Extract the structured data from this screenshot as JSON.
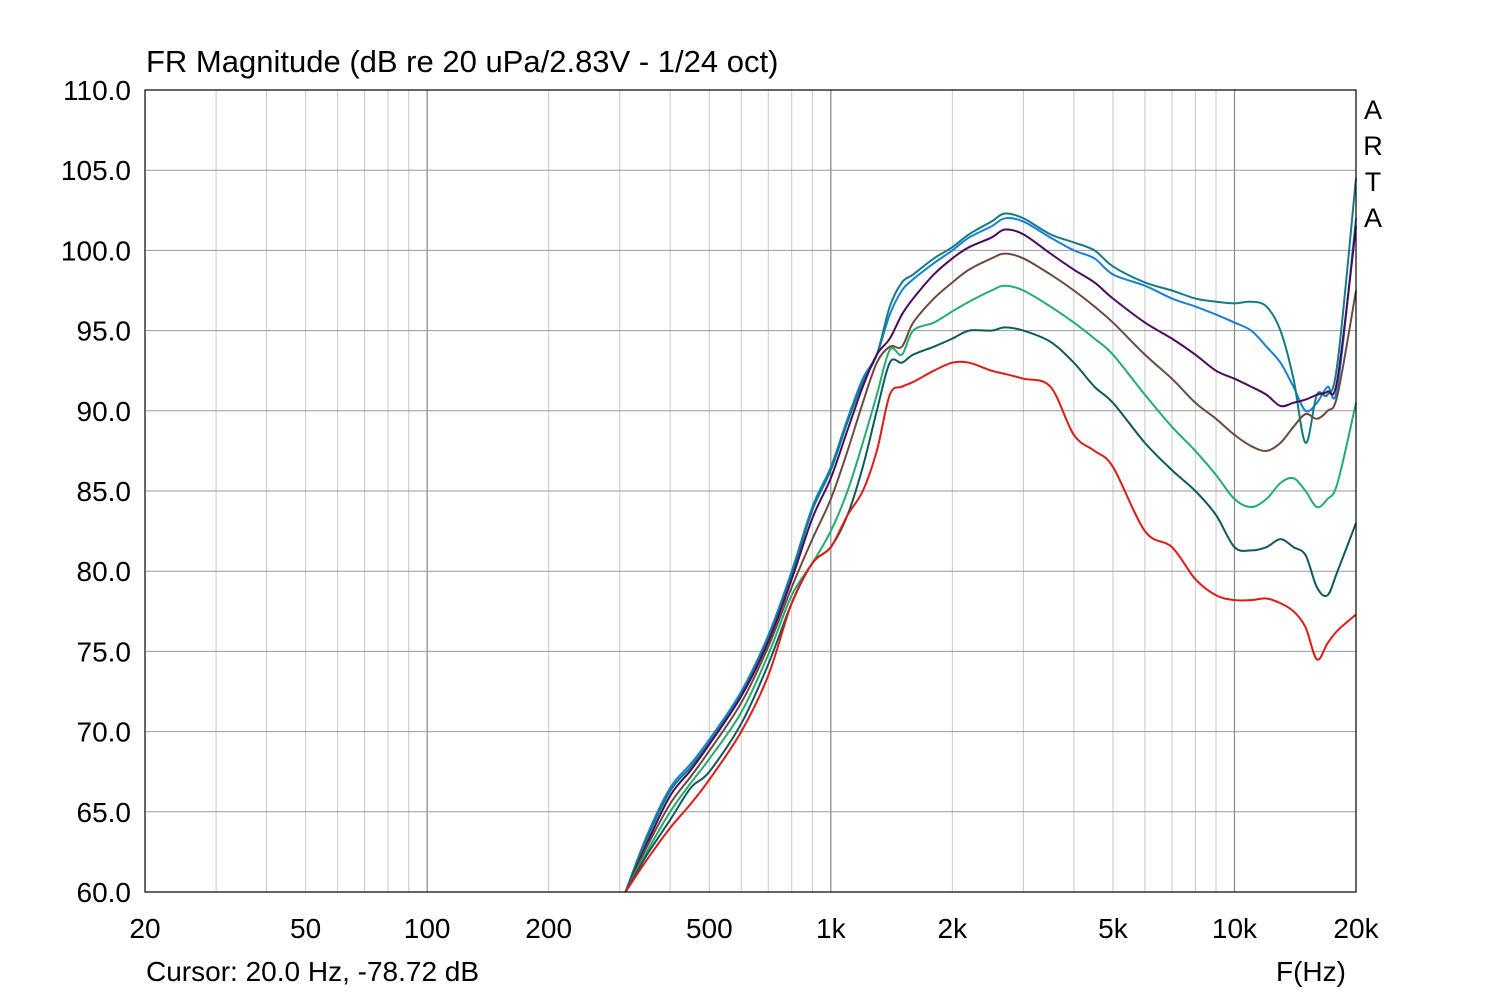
{
  "title": "FR Magnitude (dB re 20 uPa/2.83V - 1/24 oct)",
  "cursor_readout": "Cursor: 20.0 Hz, -78.72 dB",
  "x_unit_label": "F(Hz)",
  "brand_mark": "A\nR\nT\nA",
  "chart_data": {
    "type": "line",
    "title": "FR Magnitude (dB re 20 uPa/2.83V - 1/24 oct)",
    "xlabel": "F(Hz)",
    "ylabel": "",
    "x_scale": "log",
    "xlim": [
      20,
      20000
    ],
    "ylim": [
      60,
      110
    ],
    "grid": true,
    "x_ticks": [
      {
        "value": 20,
        "label": "20"
      },
      {
        "value": 50,
        "label": "50"
      },
      {
        "value": 100,
        "label": "100"
      },
      {
        "value": 200,
        "label": "200"
      },
      {
        "value": 500,
        "label": "500"
      },
      {
        "value": 1000,
        "label": "1k"
      },
      {
        "value": 2000,
        "label": "2k"
      },
      {
        "value": 5000,
        "label": "5k"
      },
      {
        "value": 10000,
        "label": "10k"
      },
      {
        "value": 20000,
        "label": "20k"
      }
    ],
    "y_ticks": [
      {
        "value": 60,
        "label": "60.0"
      },
      {
        "value": 65,
        "label": "65.0"
      },
      {
        "value": 70,
        "label": "70.0"
      },
      {
        "value": 75,
        "label": "75.0"
      },
      {
        "value": 80,
        "label": "80.0"
      },
      {
        "value": 85,
        "label": "85.0"
      },
      {
        "value": 90,
        "label": "90.0"
      },
      {
        "value": 95,
        "label": "95.0"
      },
      {
        "value": 100,
        "label": "100.0"
      },
      {
        "value": 105,
        "label": "105.0"
      },
      {
        "value": 110,
        "label": "110.0"
      }
    ],
    "x": [
      310,
      350,
      400,
      450,
      500,
      600,
      700,
      800,
      900,
      1000,
      1100,
      1200,
      1300,
      1400,
      1500,
      1600,
      1800,
      2000,
      2200,
      2500,
      2700,
      3000,
      3500,
      4000,
      4500,
      5000,
      6000,
      7000,
      8000,
      9000,
      10000,
      11000,
      12000,
      13000,
      14000,
      15000,
      16000,
      17000,
      18000,
      20000
    ],
    "series": [
      {
        "color": "#1a7fd6",
        "values": [
          60.0,
          63.5,
          66.5,
          68.0,
          69.5,
          72.5,
          76.0,
          80.0,
          84.0,
          86.5,
          89.5,
          92.0,
          93.5,
          96.0,
          97.5,
          98.2,
          99.2,
          100.0,
          100.8,
          101.5,
          102.0,
          101.8,
          100.8,
          100.0,
          99.5,
          98.5,
          97.8,
          97.0,
          96.5,
          96.0,
          95.5,
          95.0,
          94.0,
          93.0,
          91.5,
          90.0,
          90.5,
          91.5,
          91.5,
          102.0
        ]
      },
      {
        "color": "#127d82",
        "values": [
          60.0,
          63.3,
          66.3,
          67.8,
          69.3,
          72.3,
          75.8,
          79.8,
          83.8,
          86.3,
          89.3,
          91.8,
          93.5,
          96.5,
          98.0,
          98.5,
          99.5,
          100.2,
          101.0,
          101.8,
          102.3,
          102.0,
          101.0,
          100.5,
          100.0,
          99.0,
          98.0,
          97.5,
          97.0,
          96.8,
          96.7,
          96.8,
          96.5,
          95.0,
          92.0,
          88.0,
          91.0,
          91.0,
          93.0,
          104.5
        ]
      },
      {
        "color": "#4b0a5e",
        "values": [
          60.0,
          63.0,
          66.0,
          67.6,
          69.2,
          72.2,
          75.6,
          79.5,
          83.3,
          85.8,
          88.8,
          91.5,
          93.5,
          94.5,
          96.0,
          97.0,
          98.5,
          99.5,
          100.2,
          100.8,
          101.3,
          101.0,
          99.8,
          98.8,
          98.0,
          97.0,
          95.5,
          94.5,
          93.5,
          92.5,
          92.0,
          91.5,
          91.0,
          90.3,
          90.5,
          90.7,
          91.0,
          91.2,
          92.0,
          101.5
        ]
      },
      {
        "color": "#6e4a3c",
        "values": [
          60.0,
          62.8,
          65.5,
          67.2,
          68.8,
          71.8,
          75.3,
          79.0,
          82.0,
          84.5,
          87.5,
          90.5,
          93.0,
          94.0,
          94.0,
          95.5,
          97.0,
          98.0,
          98.8,
          99.5,
          99.8,
          99.5,
          98.5,
          97.5,
          96.5,
          95.5,
          93.5,
          92.0,
          90.5,
          89.5,
          88.5,
          87.8,
          87.5,
          88.0,
          89.0,
          89.8,
          89.5,
          90.0,
          91.0,
          97.5
        ]
      },
      {
        "color": "#22ad6e",
        "values": [
          60.0,
          62.5,
          65.0,
          66.8,
          68.3,
          71.2,
          74.8,
          78.5,
          80.5,
          82.5,
          85.0,
          88.0,
          91.0,
          93.8,
          93.5,
          95.0,
          95.5,
          96.2,
          96.8,
          97.5,
          97.8,
          97.5,
          96.5,
          95.5,
          94.5,
          93.5,
          91.0,
          89.0,
          87.5,
          86.0,
          84.5,
          84.0,
          84.5,
          85.5,
          85.8,
          85.0,
          84.0,
          84.5,
          85.5,
          90.5
        ]
      },
      {
        "color": "#0e5a5e",
        "values": [
          60.0,
          62.3,
          64.5,
          66.5,
          67.5,
          70.5,
          74.2,
          78.0,
          80.5,
          81.5,
          83.5,
          86.5,
          90.0,
          93.0,
          93.0,
          93.5,
          94.0,
          94.5,
          95.0,
          95.0,
          95.2,
          95.0,
          94.3,
          93.0,
          91.5,
          90.5,
          88.0,
          86.3,
          85.0,
          83.5,
          81.5,
          81.3,
          81.5,
          82.0,
          81.5,
          81.0,
          79.0,
          78.5,
          80.0,
          83.0
        ]
      },
      {
        "color": "#dd1c14",
        "values": [
          60.0,
          62.0,
          64.0,
          65.5,
          67.0,
          70.0,
          73.5,
          78.0,
          80.5,
          81.5,
          83.5,
          85.0,
          87.5,
          91.0,
          91.5,
          91.8,
          92.5,
          93.0,
          93.0,
          92.5,
          92.3,
          92.0,
          91.5,
          88.5,
          87.5,
          86.5,
          82.5,
          81.5,
          79.5,
          78.5,
          78.2,
          78.2,
          78.3,
          78.0,
          77.5,
          76.5,
          74.5,
          75.5,
          76.3,
          77.3
        ]
      }
    ]
  }
}
